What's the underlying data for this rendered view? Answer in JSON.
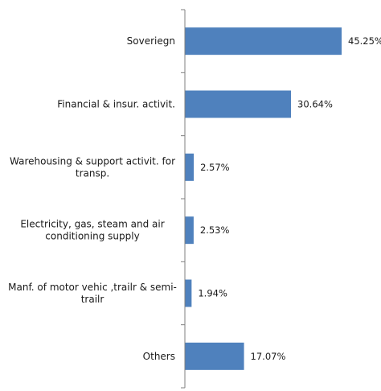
{
  "chart_data": {
    "type": "bar",
    "orientation": "horizontal",
    "categories": [
      "Soveriegn",
      "Financial & insur. activit.",
      "Warehousing & support activit. for transp.",
      "Electricity, gas, steam and air conditioning supply",
      "Manf. of motor vehic ,trailr & semi-trailr",
      "Others"
    ],
    "values": [
      45.25,
      30.64,
      2.57,
      2.53,
      1.94,
      17.07
    ],
    "data_labels": [
      "45.25%",
      "30.64%",
      "2.57%",
      "2.53%",
      "1.94%",
      "17.07%"
    ],
    "unit": "%",
    "xlim": [
      0,
      46
    ],
    "grid": false,
    "legend": "none",
    "bar_color": "#4f81bd"
  }
}
